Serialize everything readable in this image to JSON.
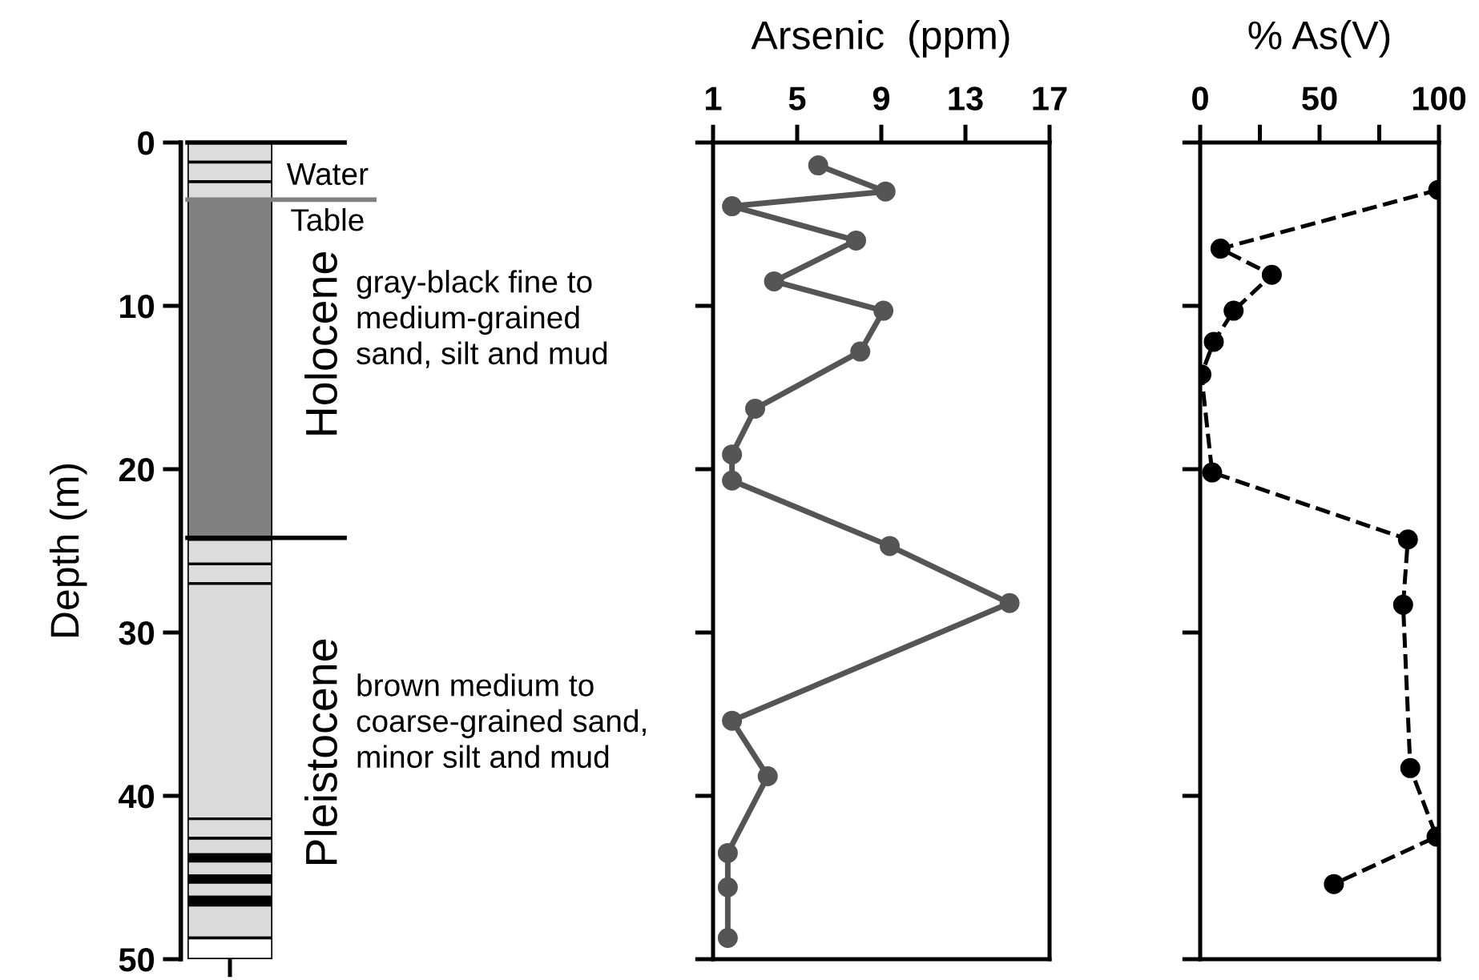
{
  "chart_data": [
    {
      "type": "bar",
      "stacked": true,
      "categories": [
        null
      ],
      "ylabel": "Depth (m)",
      "ylim": [
        50,
        0
      ],
      "yticks": [
        0,
        10,
        20,
        30,
        40,
        50
      ],
      "tick_labels": "y",
      "series": [
        {
          "color": "#dcdcdc",
          "values": [
            1.2
          ]
        },
        {
          "color": "#dcdcdc",
          "values": [
            1.2
          ]
        },
        {
          "color": "#dcdcdc",
          "values": [
            1.1
          ]
        },
        {
          "color": "#808080",
          "values": [
            20.8
          ]
        },
        {
          "color": "#dcdcdc",
          "values": [
            1.5
          ]
        },
        {
          "color": "#dcdcdc",
          "values": [
            1.2
          ]
        },
        {
          "color": "#dadada",
          "values": [
            14.4
          ]
        },
        {
          "color": "#dcdcdc",
          "values": [
            1.2
          ]
        },
        {
          "color": "#dadada",
          "values": [
            1.0
          ]
        },
        {
          "color": "#000000",
          "values": [
            0.4
          ]
        },
        {
          "color": "#dadada",
          "values": [
            0.9
          ]
        },
        {
          "color": "#000000",
          "values": [
            0.4
          ]
        },
        {
          "color": "#dadada",
          "values": [
            0.9
          ]
        },
        {
          "color": "#000000",
          "values": [
            0.5
          ]
        },
        {
          "color": "#dadada",
          "values": [
            2.0
          ]
        },
        {
          "color": "#ffffff",
          "values": [
            1.3
          ]
        }
      ],
      "ref_lines": [
        {
          "axis": "y",
          "value": 0,
          "color": "#000000"
        },
        {
          "axis": "y",
          "value": 3.5,
          "label": "Water\nTable",
          "color": "#808080"
        },
        {
          "axis": "y",
          "value": 24.2,
          "color": "#000000"
        }
      ],
      "annotations": [
        "Holocene",
        "gray-black fine to\nmedium-grained\nsand, silt and mud",
        "Pleistocene",
        "brown medium to\ncoarse-grained sand,\nminor silt and mud"
      ]
    },
    {
      "type": "line",
      "title": "Arsenic  (ppm)",
      "xlim": [
        1,
        17
      ],
      "xticks": [
        1,
        5,
        9,
        13,
        17
      ],
      "ylim": [
        50,
        0
      ],
      "yticks": [
        {
          "value": 0,
          "label": null
        },
        {
          "value": 10,
          "label": null
        },
        {
          "value": 20,
          "label": null
        },
        {
          "value": 30,
          "label": null
        },
        {
          "value": 40,
          "label": null
        },
        {
          "value": 50,
          "label": null
        }
      ],
      "tick_labels": "x",
      "marker": "circle",
      "line_style": "solid",
      "series": [
        {
          "color": "#555555",
          "x": [
            6.0,
            9.2,
            1.9,
            7.8,
            3.9,
            9.1,
            8.0,
            3.0,
            1.9,
            1.9,
            9.4,
            15.1,
            1.9,
            3.6,
            1.7,
            1.7,
            1.7
          ],
          "values": [
            1.4,
            3.0,
            3.9,
            6.0,
            8.5,
            10.3,
            12.8,
            16.3,
            19.1,
            20.7,
            24.7,
            28.2,
            35.4,
            38.8,
            43.5,
            45.6,
            48.7
          ]
        }
      ]
    },
    {
      "type": "line",
      "title": "% As(V)",
      "xlim": [
        0,
        100
      ],
      "xticks": [
        0,
        {
          "value": 25,
          "label": null
        },
        50,
        {
          "value": 75,
          "label": null
        },
        100
      ],
      "ylim": [
        50,
        0
      ],
      "yticks": [
        {
          "value": 0,
          "label": null
        },
        {
          "value": 10,
          "label": null
        },
        {
          "value": 20,
          "label": null
        },
        {
          "value": 30,
          "label": null
        },
        {
          "value": 40,
          "label": null
        },
        {
          "value": 50,
          "label": null
        }
      ],
      "tick_labels": "x",
      "marker": "circle",
      "line_style": "dashed",
      "series": [
        {
          "color": "#000000",
          "x": [
            99.7,
            8.5,
            30,
            14,
            5.7,
            0.5,
            5,
            87,
            85,
            88,
            99,
            56
          ],
          "values": [
            2.9,
            6.5,
            8.1,
            10.3,
            12.2,
            14.2,
            20.2,
            24.3,
            28.3,
            38.3,
            42.5,
            45.4
          ]
        }
      ]
    }
  ]
}
